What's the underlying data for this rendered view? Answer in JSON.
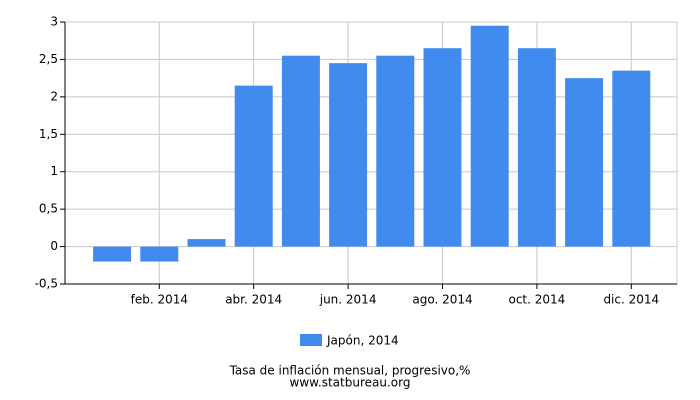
{
  "chart_data": {
    "type": "bar",
    "title": "Tasa de inflación mensual, progresivo,%",
    "subtitle": "www.statbureau.org",
    "categories": [
      null,
      "feb. 2014",
      null,
      "abr. 2014",
      null,
      "jun. 2014",
      null,
      "ago. 2014",
      null,
      "oct. 2014",
      null,
      "dic. 2014"
    ],
    "series": [
      {
        "name": "Japón, 2014",
        "color": "#418bee",
        "values": [
          -0.2,
          -0.2,
          0.1,
          2.15,
          2.55,
          2.45,
          2.55,
          2.65,
          2.95,
          2.65,
          2.25,
          2.35
        ]
      }
    ],
    "ylim": [
      -0.5,
      3
    ],
    "yticks": [
      {
        "value": -0.5,
        "label": "-0,5"
      },
      0,
      {
        "value": 0.5,
        "label": "0,5"
      },
      1,
      {
        "value": 1.5,
        "label": "1,5"
      },
      2,
      {
        "value": 2.5,
        "label": "2,5"
      },
      3
    ],
    "grid": true
  }
}
